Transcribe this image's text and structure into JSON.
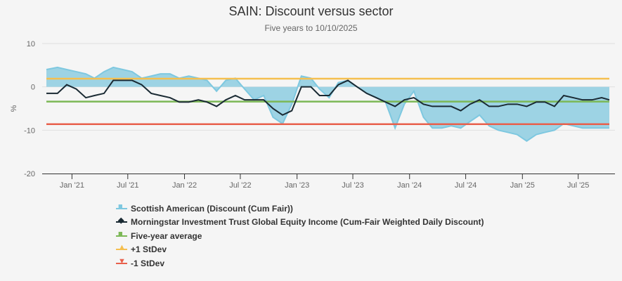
{
  "chart_data": {
    "type": "area",
    "title": "SAIN: Discount versus sector",
    "subtitle": "Five years to 10/10/2025",
    "ylabel": "%",
    "xlabel": "",
    "ylim": [
      -20,
      10
    ],
    "yticks": [
      10,
      0,
      -10,
      -20
    ],
    "xlim": [
      "2020-10-10",
      "2025-10-10"
    ],
    "xticks": [
      {
        "date": "2021-01-01",
        "label": "Jan '21"
      },
      {
        "date": "2021-07-01",
        "label": "Jul '21"
      },
      {
        "date": "2022-01-01",
        "label": "Jan '22"
      },
      {
        "date": "2022-07-01",
        "label": "Jul '22"
      },
      {
        "date": "2023-01-01",
        "label": "Jan '23"
      },
      {
        "date": "2023-07-01",
        "label": "Jul '23"
      },
      {
        "date": "2024-01-01",
        "label": "Jan '24"
      },
      {
        "date": "2024-07-01",
        "label": "Jul '24"
      },
      {
        "date": "2025-01-01",
        "label": "Jan '25"
      },
      {
        "date": "2025-07-01",
        "label": "Jul '25"
      }
    ],
    "grid": true,
    "legend_position": "bottom",
    "x": [
      "2020-10",
      "2020-11",
      "2020-12",
      "2021-01",
      "2021-02",
      "2021-03",
      "2021-04",
      "2021-05",
      "2021-06",
      "2021-07",
      "2021-08",
      "2021-09",
      "2021-10",
      "2021-11",
      "2021-12",
      "2022-01",
      "2022-02",
      "2022-03",
      "2022-04",
      "2022-05",
      "2022-06",
      "2022-07",
      "2022-08",
      "2022-09",
      "2022-10",
      "2022-11",
      "2022-12",
      "2023-01",
      "2023-02",
      "2023-03",
      "2023-04",
      "2023-05",
      "2023-06",
      "2023-07",
      "2023-08",
      "2023-09",
      "2023-10",
      "2023-11",
      "2023-12",
      "2024-01",
      "2024-02",
      "2024-03",
      "2024-04",
      "2024-05",
      "2024-06",
      "2024-07",
      "2024-08",
      "2024-09",
      "2024-10",
      "2024-11",
      "2024-12",
      "2025-01",
      "2025-02",
      "2025-03",
      "2025-04",
      "2025-05",
      "2025-06",
      "2025-07",
      "2025-08",
      "2025-09",
      "2025-10"
    ],
    "series": [
      {
        "name": "Scottish American (Discount (Cum Fair))",
        "type": "area",
        "color": "#7ec8e0",
        "values": [
          4,
          4.5,
          4,
          3.5,
          3,
          2,
          3.5,
          4.5,
          4,
          3.5,
          2,
          2.5,
          3,
          3,
          2,
          2.5,
          2,
          1.5,
          -1,
          1.5,
          2,
          -0.5,
          -3,
          -2,
          -7,
          -8.5,
          -4,
          2.5,
          2,
          -0.5,
          -2.5,
          1,
          1.5,
          0,
          -1.5,
          -2.5,
          -3.5,
          -9.5,
          -4,
          -1,
          -7,
          -9.5,
          -9.5,
          -9,
          -9.5,
          -8,
          -6.5,
          -9,
          -10,
          -10.5,
          -11,
          -12.5,
          -11,
          -10.5,
          -10,
          -8.5,
          -9,
          -9.5,
          -9.5,
          -9.5,
          -9.5
        ]
      },
      {
        "name": "Morningstar Investment Trust Global Equity Income (Cum-Fair Weighted Daily Discount)",
        "type": "line",
        "color": "#1a2a33",
        "values": [
          -1.5,
          -1.5,
          0.5,
          -0.5,
          -2.5,
          -2,
          -1.5,
          1.5,
          1.5,
          1.5,
          0.5,
          -1.5,
          -2,
          -2.5,
          -3.5,
          -3.5,
          -3,
          -3.5,
          -4.5,
          -3,
          -2,
          -3,
          -3,
          -3,
          -5,
          -6.5,
          -5.5,
          0,
          0,
          -2,
          -2,
          0.5,
          1.5,
          0,
          -1.5,
          -2.5,
          -3.5,
          -4.5,
          -3,
          -2.5,
          -4,
          -4.5,
          -4.5,
          -4.5,
          -5.5,
          -4,
          -3,
          -4.5,
          -4.5,
          -4,
          -4,
          -4.5,
          -3.5,
          -3.5,
          -4.5,
          -2,
          -2.5,
          -3,
          -3,
          -2.5,
          -3
        ]
      },
      {
        "name": "Five-year average",
        "type": "hline",
        "color": "#7cb856",
        "value": -3.4
      },
      {
        "name": "+1 StDev",
        "type": "hline",
        "color": "#f5bf4f",
        "value": 1.9
      },
      {
        "name": "-1 StDev",
        "type": "hline",
        "color": "#e8604c",
        "value": -8.6
      }
    ]
  }
}
